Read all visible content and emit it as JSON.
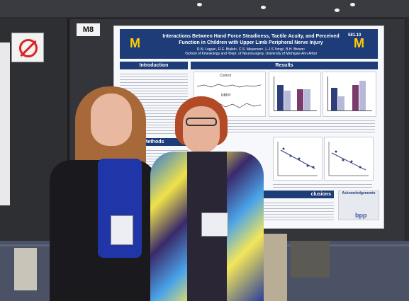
{
  "board": {
    "label": "M8"
  },
  "poster": {
    "id": "581.10",
    "title": "Interactions Between Hand Force Steadiness, Tactile Acuity, and Perceived Function in Children with Upper Limb Peripheral Nerve Injury",
    "authors": "R.N. Logue¹, R.E. Bialek¹, C.S. Meyerson¹, L-J.S Yang², B.H. Brown¹",
    "affiliation": "¹School of Kinesiology and ²Dept. of Neurosurgery, University of Michigan-Ann Arbor",
    "sections": {
      "introduction": "Introduction",
      "results": "Results",
      "methods": "Methods",
      "conclusions": "clusions",
      "acknowledgements": "Acknowledgements"
    },
    "chart_labels": {
      "control": "Control",
      "nbpp": "NBPP"
    },
    "footer_logo": "bpp",
    "logo_letter": "M"
  },
  "colors": {
    "poster_header": "#1d3c78",
    "michigan_maize": "#ffcb05",
    "bar_navy": "#2e3e7a",
    "bar_plum": "#7a3a6b",
    "bar_light": "#b7b9d9"
  }
}
